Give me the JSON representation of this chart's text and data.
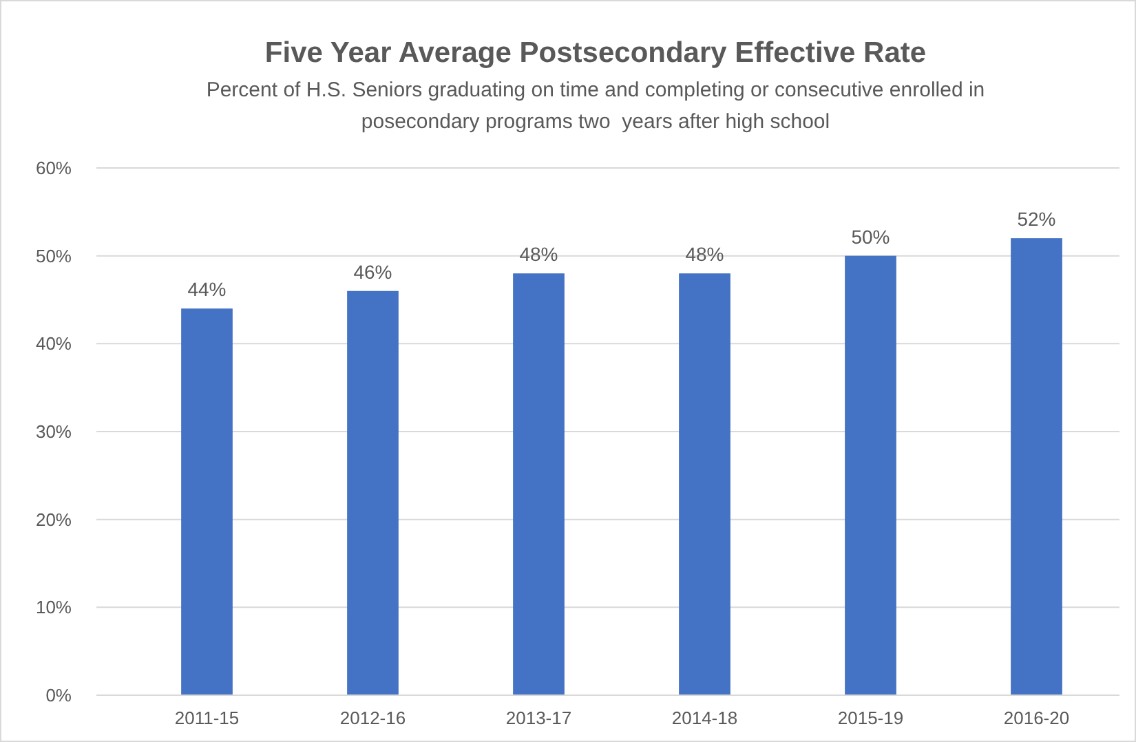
{
  "chart_data": {
    "type": "bar",
    "title": "Five Year Average Postsecondary Effective Rate",
    "subtitle": "Percent of H.S. Seniors graduating on time and completing or consecutive enrolled in posecondary programs two  years after high school",
    "categories": [
      "2011-15",
      "2012-16",
      "2013-17",
      "2014-18",
      "2015-19",
      "2016-20"
    ],
    "values": [
      44,
      46,
      48,
      48,
      50,
      52
    ],
    "value_labels": [
      "44%",
      "46%",
      "48%",
      "48%",
      "50%",
      "52%"
    ],
    "color": "#4472c4",
    "ylim": [
      0,
      60
    ],
    "yticks": [
      {
        "value": 0,
        "label": "0%"
      },
      {
        "value": 10,
        "label": "10%"
      },
      {
        "value": 20,
        "label": "20%"
      },
      {
        "value": 30,
        "label": "30%"
      },
      {
        "value": 40,
        "label": "40%"
      },
      {
        "value": 50,
        "label": "50%"
      },
      {
        "value": 60,
        "label": "60%"
      }
    ],
    "grid": "y"
  }
}
